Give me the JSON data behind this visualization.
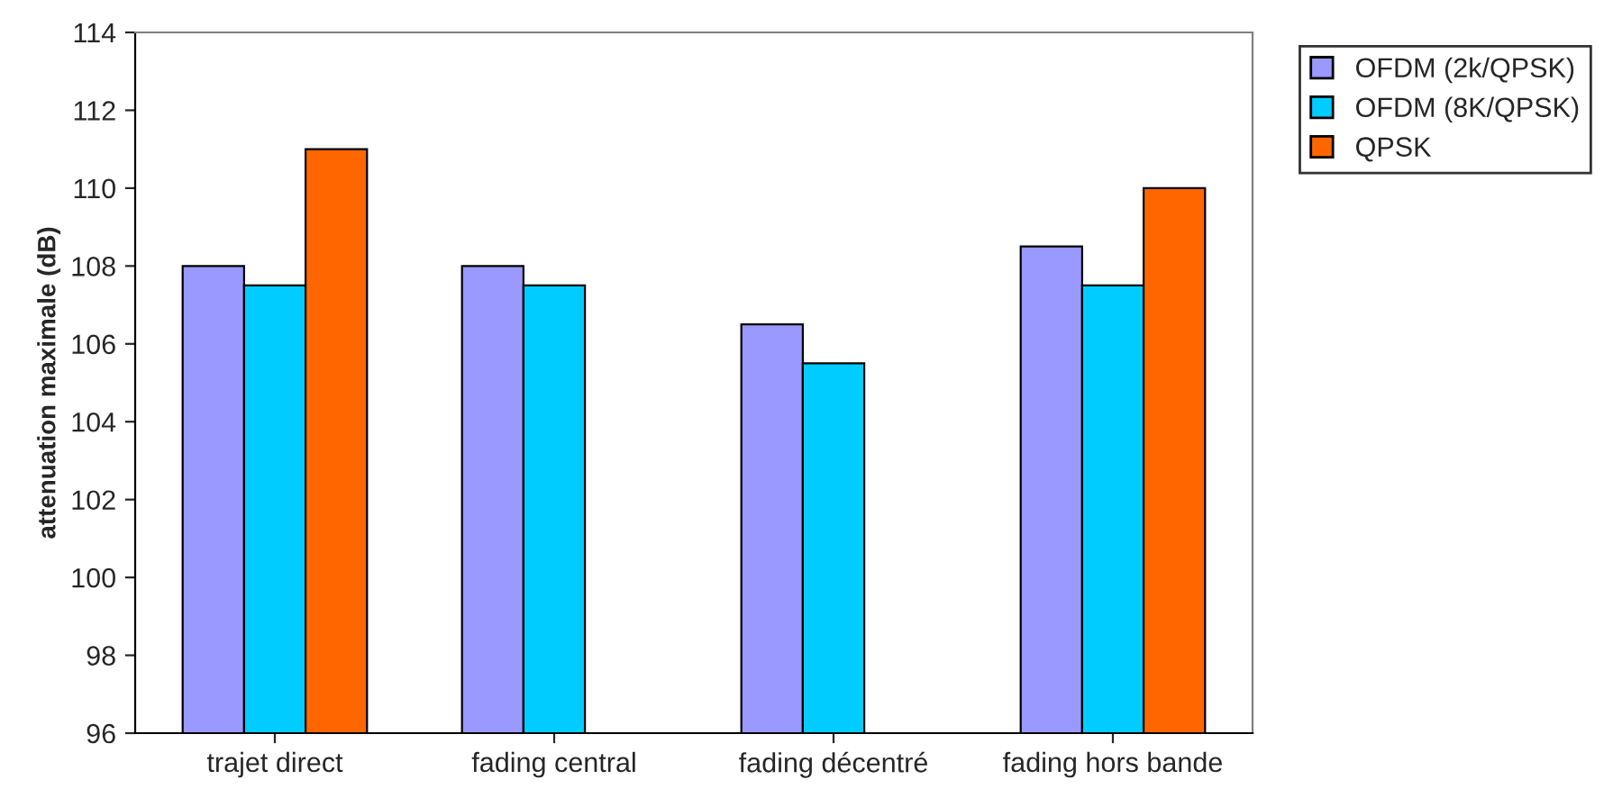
{
  "chart_data": {
    "type": "bar",
    "ylabel": "attenuation maximale (dB)",
    "categories": [
      "trajet direct",
      "fading central",
      "fading décentré",
      "fading hors bande"
    ],
    "series": [
      {
        "name": "OFDM (2k/QPSK)",
        "color": "#9999ff",
        "values": [
          108,
          108,
          106.5,
          108.5
        ]
      },
      {
        "name": "OFDM (8K/QPSK)",
        "color": "#00ccff",
        "values": [
          107.5,
          107.5,
          105.5,
          107.5
        ]
      },
      {
        "name": "QPSK",
        "color": "#ff6600",
        "values": [
          111,
          null,
          null,
          110
        ]
      }
    ],
    "ylim": [
      96,
      114
    ],
    "yticks": [
      96,
      98,
      100,
      102,
      104,
      106,
      108,
      110,
      112,
      114
    ],
    "grid": false,
    "legend": "top right"
  }
}
